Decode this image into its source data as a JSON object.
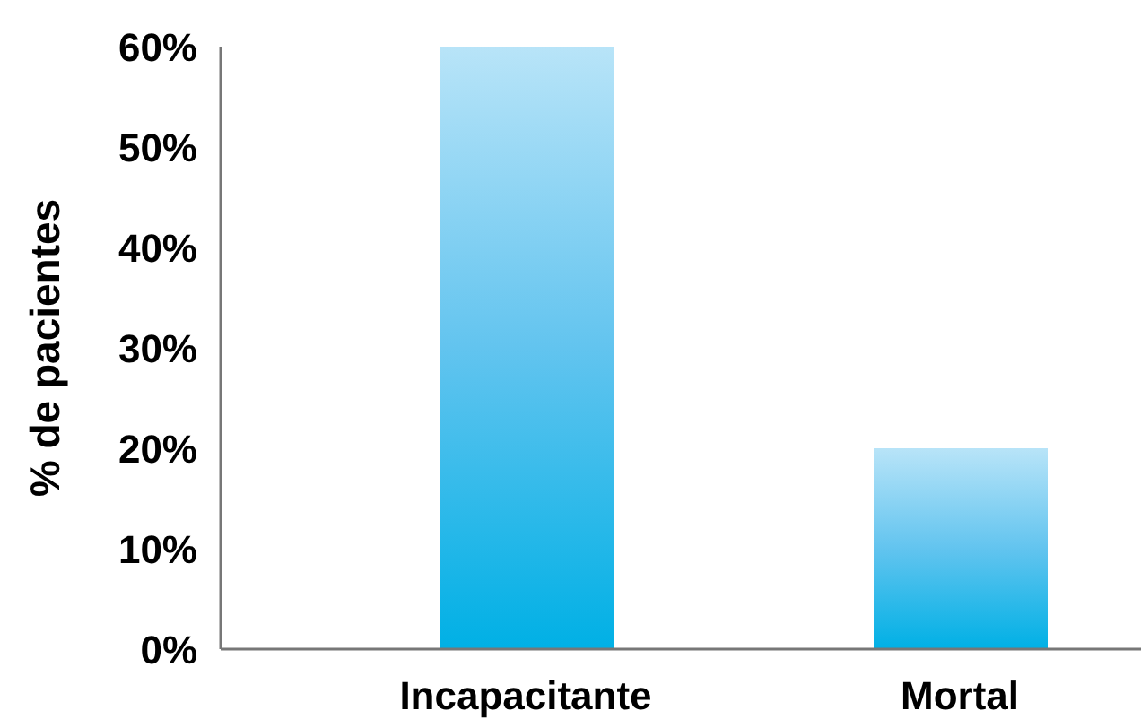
{
  "chart_data": {
    "type": "bar",
    "categories": [
      "Incapacitante",
      "Mortal"
    ],
    "values": [
      60,
      20
    ],
    "color": "#62c4ef",
    "ylabel": "% de pacientes",
    "ylim": [
      0,
      60
    ],
    "yticks": [
      {
        "value": 0,
        "label": "0%"
      },
      {
        "value": 10,
        "label": "10%"
      },
      {
        "value": 20,
        "label": "20%"
      },
      {
        "value": 30,
        "label": "30%"
      },
      {
        "value": 40,
        "label": "40%"
      },
      {
        "value": 50,
        "label": "50%"
      },
      {
        "value": 60,
        "label": "60%"
      }
    ]
  }
}
